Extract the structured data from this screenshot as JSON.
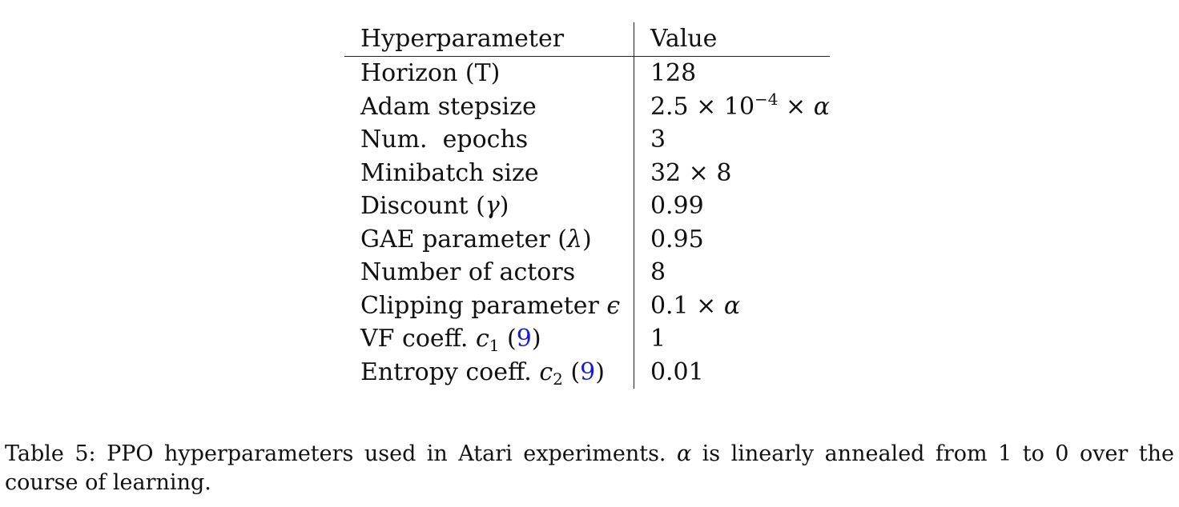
{
  "table": {
    "headers": {
      "param": "Hyperparameter",
      "value": "Value"
    },
    "rows": [
      {
        "param": "Horizon (T)",
        "value": "128"
      },
      {
        "param": "Adam stepsize",
        "value_parts": {
          "base": "2.5 × 10",
          "exp": "−4",
          "tail": " × ",
          "var": "α"
        }
      },
      {
        "param": "Num.  epochs",
        "value": "3"
      },
      {
        "param": "Minibatch size",
        "value": "32 × 8"
      },
      {
        "param_parts": {
          "text": "Discount (",
          "var": "γ",
          "close": ")"
        },
        "value": "0.99"
      },
      {
        "param_parts": {
          "text": "GAE parameter (",
          "var": "λ",
          "close": ")"
        },
        "value": "0.95"
      },
      {
        "param": "Number of actors",
        "value": "8"
      },
      {
        "param_parts": {
          "text": "Clipping parameter ",
          "var": "ϵ"
        },
        "value_parts": {
          "text": "0.1 × ",
          "var": "α"
        }
      },
      {
        "param_parts": {
          "text": "VF coeff. ",
          "var": "c",
          "sub": "1",
          "open": " (",
          "ref": "9",
          "close": ")"
        },
        "value": "1"
      },
      {
        "param_parts": {
          "text": "Entropy coeff. ",
          "var": "c",
          "sub": "2",
          "open": " (",
          "ref": "9",
          "close": ")"
        },
        "value": "0.01"
      }
    ]
  },
  "caption": {
    "label": "Table 5:",
    "text_before": " PPO hyperparameters used in Atari experiments. ",
    "var": "α",
    "text_after": " is linearly annealed from 1 to 0 over the course of learning."
  },
  "colors": {
    "text": "#111111",
    "reference_link": "#1a1ad6",
    "rule": "#222222"
  }
}
